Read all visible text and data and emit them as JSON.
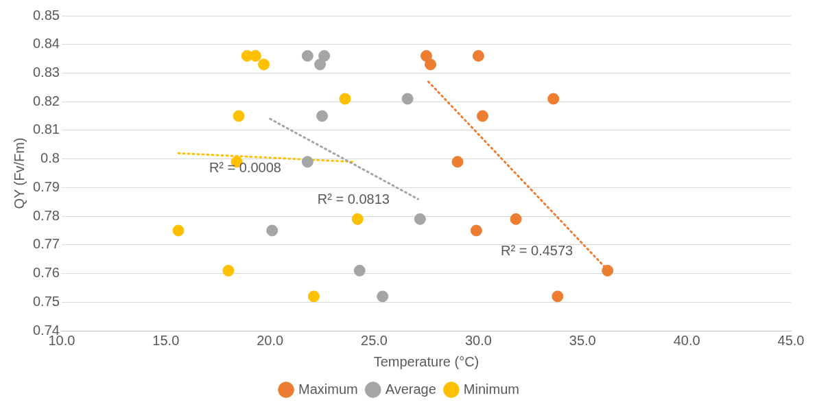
{
  "chart_data": {
    "type": "scatter",
    "xlabel": "Temperature (°C)",
    "ylabel": "QY (Fv/Fm)",
    "xlim": [
      10,
      45
    ],
    "xticks": [
      {
        "value": 10,
        "label": "10.0"
      },
      {
        "value": 15,
        "label": "15.0"
      },
      {
        "value": 20,
        "label": "20.0"
      },
      {
        "value": 25,
        "label": "25.0"
      },
      {
        "value": 30,
        "label": "30.0"
      },
      {
        "value": 35,
        "label": "35.0"
      },
      {
        "value": 40,
        "label": "40.0"
      },
      {
        "value": 45,
        "label": "45.0"
      }
    ],
    "ylim": [
      0.74,
      0.85
    ],
    "yticks": [
      0.74,
      0.75,
      0.76,
      0.77,
      0.78,
      0.79,
      0.8,
      0.81,
      0.82,
      0.83,
      0.84,
      0.85
    ],
    "grid": "y",
    "legend": "bottom",
    "marker": "circle",
    "series": [
      {
        "name": "Maximum",
        "color": "#ed7d31",
        "x": [
          27.5,
          27.7,
          30.0,
          33.6,
          30.2,
          29.0,
          31.8,
          29.9,
          36.2,
          33.8
        ],
        "values": [
          0.836,
          0.833,
          0.836,
          0.821,
          0.815,
          0.799,
          0.779,
          0.775,
          0.761,
          0.752
        ]
      },
      {
        "name": "Average",
        "color": "#a5a5a5",
        "x": [
          21.8,
          22.6,
          22.4,
          26.6,
          22.5,
          21.8,
          27.2,
          20.1,
          24.3,
          25.4
        ],
        "values": [
          0.836,
          0.836,
          0.833,
          0.821,
          0.815,
          0.799,
          0.779,
          0.775,
          0.761,
          0.752
        ]
      },
      {
        "name": "Minimum",
        "color": "#ffc000",
        "x": [
          18.9,
          19.3,
          19.7,
          23.6,
          18.5,
          18.4,
          24.2,
          15.6,
          18.0,
          22.1
        ],
        "values": [
          0.836,
          0.836,
          0.833,
          0.821,
          0.815,
          0.799,
          0.779,
          0.775,
          0.761,
          0.752
        ]
      },
      {
        "type": "line",
        "color": "#ed7d31",
        "line_style": "dotted",
        "marker": "none",
        "x": [
          27.6,
          36.1
        ],
        "values": [
          0.827,
          0.762
        ]
      },
      {
        "type": "line",
        "color": "#a5a5a5",
        "line_style": "dotted",
        "marker": "none",
        "x": [
          20.0,
          27.1
        ],
        "values": [
          0.814,
          0.786
        ]
      },
      {
        "type": "line",
        "color": "#ffc000",
        "line_style": "dotted",
        "marker": "none",
        "x": [
          15.6,
          24.0
        ],
        "values": [
          0.802,
          0.799
        ]
      }
    ],
    "annotations": [
      {
        "text": "R² = 0.0008",
        "x": 20.8,
        "y": 0.801
      },
      {
        "text": "R² = 0.0813",
        "x": 26.0,
        "y": 0.79
      },
      {
        "text": "R² = 0.4573",
        "x": 34.8,
        "y": 0.772
      }
    ]
  }
}
